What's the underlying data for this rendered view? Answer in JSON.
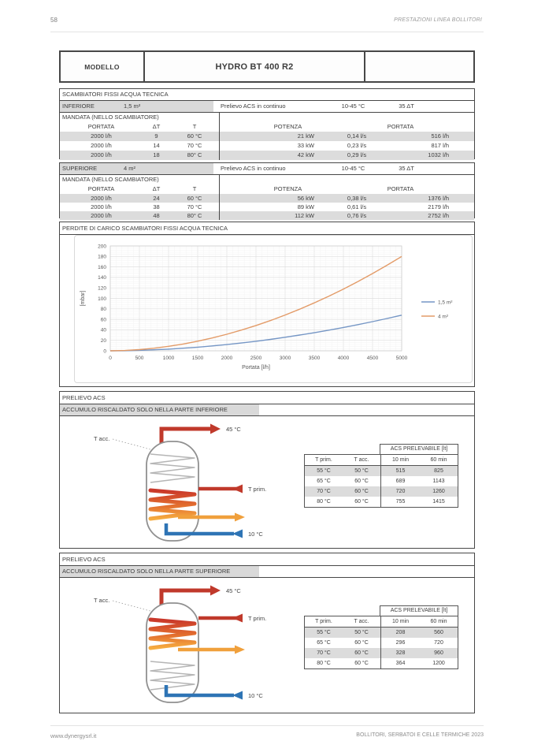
{
  "page": {
    "number": "58",
    "header_right": "PRESTAZIONI LINEA BOLLITORI",
    "footer_left": "www.dynergysrl.it",
    "footer_right": "BOLLITORI, SERBATOI E CELLE TERMICHE 2023"
  },
  "modello": {
    "label": "MODELLO",
    "value": "HYDRO BT 400 R2"
  },
  "scambiatori": {
    "title": "SCAMBIATORI FISSI ACQUA TECNICA",
    "mandata_label": "MANDATA (NELLO SCAMBIATORE)",
    "headers": {
      "portata": "PORTATA",
      "dt": "ΔT",
      "t": "T",
      "potenza": "POTENZA",
      "portata2": "PORTATA"
    },
    "inferiore": {
      "name": "INFERIORE",
      "area": "1,5 m²",
      "prelievo": "Prelievo ACS in continuo",
      "range": "10-45 °C",
      "dt": "35 ΔT",
      "rows": [
        {
          "portata": "2000 l/h",
          "dt": "9",
          "t": "60 °C",
          "potenza": "21 kW",
          "ls": "0,14 l/s",
          "lh": "516 l/h"
        },
        {
          "portata": "2000 l/h",
          "dt": "14",
          "t": "70 °C",
          "potenza": "33 kW",
          "ls": "0,23 l/s",
          "lh": "817 l/h"
        },
        {
          "portata": "2000 l/h",
          "dt": "18",
          "t": "80° C",
          "potenza": "42 kW",
          "ls": "0,29 l/s",
          "lh": "1032 l/h"
        }
      ]
    },
    "superiore": {
      "name": "SUPERIORE",
      "area": "4 m²",
      "prelievo": "Prelievo ACS in continuo",
      "range": "10-45 °C",
      "dt": "35 ΔT",
      "rows": [
        {
          "portata": "2000 l/h",
          "dt": "24",
          "t": "60 °C",
          "potenza": "56 kW",
          "ls": "0,38 l/s",
          "lh": "1376 l/h"
        },
        {
          "portata": "2000 l/h",
          "dt": "38",
          "t": "70 °C",
          "potenza": "89 kW",
          "ls": "0,61 l/s",
          "lh": "2179 l/h"
        },
        {
          "portata": "2000 l/h",
          "dt": "48",
          "t": "80° C",
          "potenza": "112 kW",
          "ls": "0,76 l/s",
          "lh": "2752 l/h"
        }
      ]
    }
  },
  "chart_data": {
    "type": "line",
    "title": "PERDITE DI CARICO SCAMBIATORI FISSI ACQUA TECNICA",
    "xlabel": "Portata [l/h]",
    "ylabel": "[mbar]",
    "xlim": [
      0,
      5000
    ],
    "ylim": [
      0,
      200
    ],
    "x_tick_step": 500,
    "y_tick_step": 20,
    "x_minor": 100,
    "y_minor": 4,
    "grid": true,
    "legend_position": "right",
    "x": [
      0,
      250,
      500,
      750,
      1000,
      1250,
      1500,
      1750,
      2000,
      2250,
      2500,
      2750,
      3000,
      3250,
      3500,
      3750,
      4000,
      4250,
      4500,
      4750,
      5000
    ],
    "series": [
      {
        "name": "1,5 m²",
        "color": "#7596c5",
        "values": [
          0,
          0.2,
          0.9,
          1.9,
          3.2,
          4.9,
          6.9,
          9.3,
          11.9,
          14.9,
          18.2,
          21.8,
          25.8,
          30,
          34.5,
          39.4,
          44.5,
          49.9,
          55.7,
          61.7,
          68
        ]
      },
      {
        "name": "4 m²",
        "color": "#e39b68",
        "values": [
          0,
          0.6,
          2.3,
          4.9,
          8.5,
          12.9,
          18.3,
          24.5,
          31.6,
          39.5,
          48.2,
          57.8,
          68.2,
          79.4,
          91.4,
          104.2,
          117.8,
          132.2,
          147.3,
          163.3,
          180
        ]
      }
    ]
  },
  "prelievo": {
    "title": "PRELIEVO ACS",
    "labels": {
      "t_acc": "T acc.",
      "t_out": "45 °C",
      "t_prim": "T prim.",
      "t_in": "10 °C"
    },
    "table_headers": {
      "span": "ACS PRELEVABILE [lt]",
      "t_prim": "T prim.",
      "t_acc": "T acc.",
      "m10": "10 min",
      "m60": "60 min"
    },
    "inferiore": {
      "subtitle": "ACCUMULO RISCALDATO SOLO NELLA PARTE INFERIORE",
      "rows": [
        [
          "55 °C",
          "50 °C",
          "515",
          "825"
        ],
        [
          "65 °C",
          "60 °C",
          "689",
          "1143"
        ],
        [
          "70 °C",
          "60 °C",
          "720",
          "1260"
        ],
        [
          "80 °C",
          "60 °C",
          "755",
          "1415"
        ]
      ]
    },
    "superiore": {
      "subtitle": "ACCUMULO RISCALDATO SOLO NELLA PARTE SUPERIORE",
      "rows": [
        [
          "55 °C",
          "50 °C",
          "208",
          "560"
        ],
        [
          "65 °C",
          "60 °C",
          "296",
          "720"
        ],
        [
          "70 °C",
          "60 °C",
          "328",
          "960"
        ],
        [
          "80 °C",
          "60 °C",
          "364",
          "1200"
        ]
      ]
    }
  },
  "colors": {
    "red": "#c03a2b",
    "orange": "#f0a03c",
    "blue": "#2e74b5",
    "shade": "#dcdcdc"
  }
}
